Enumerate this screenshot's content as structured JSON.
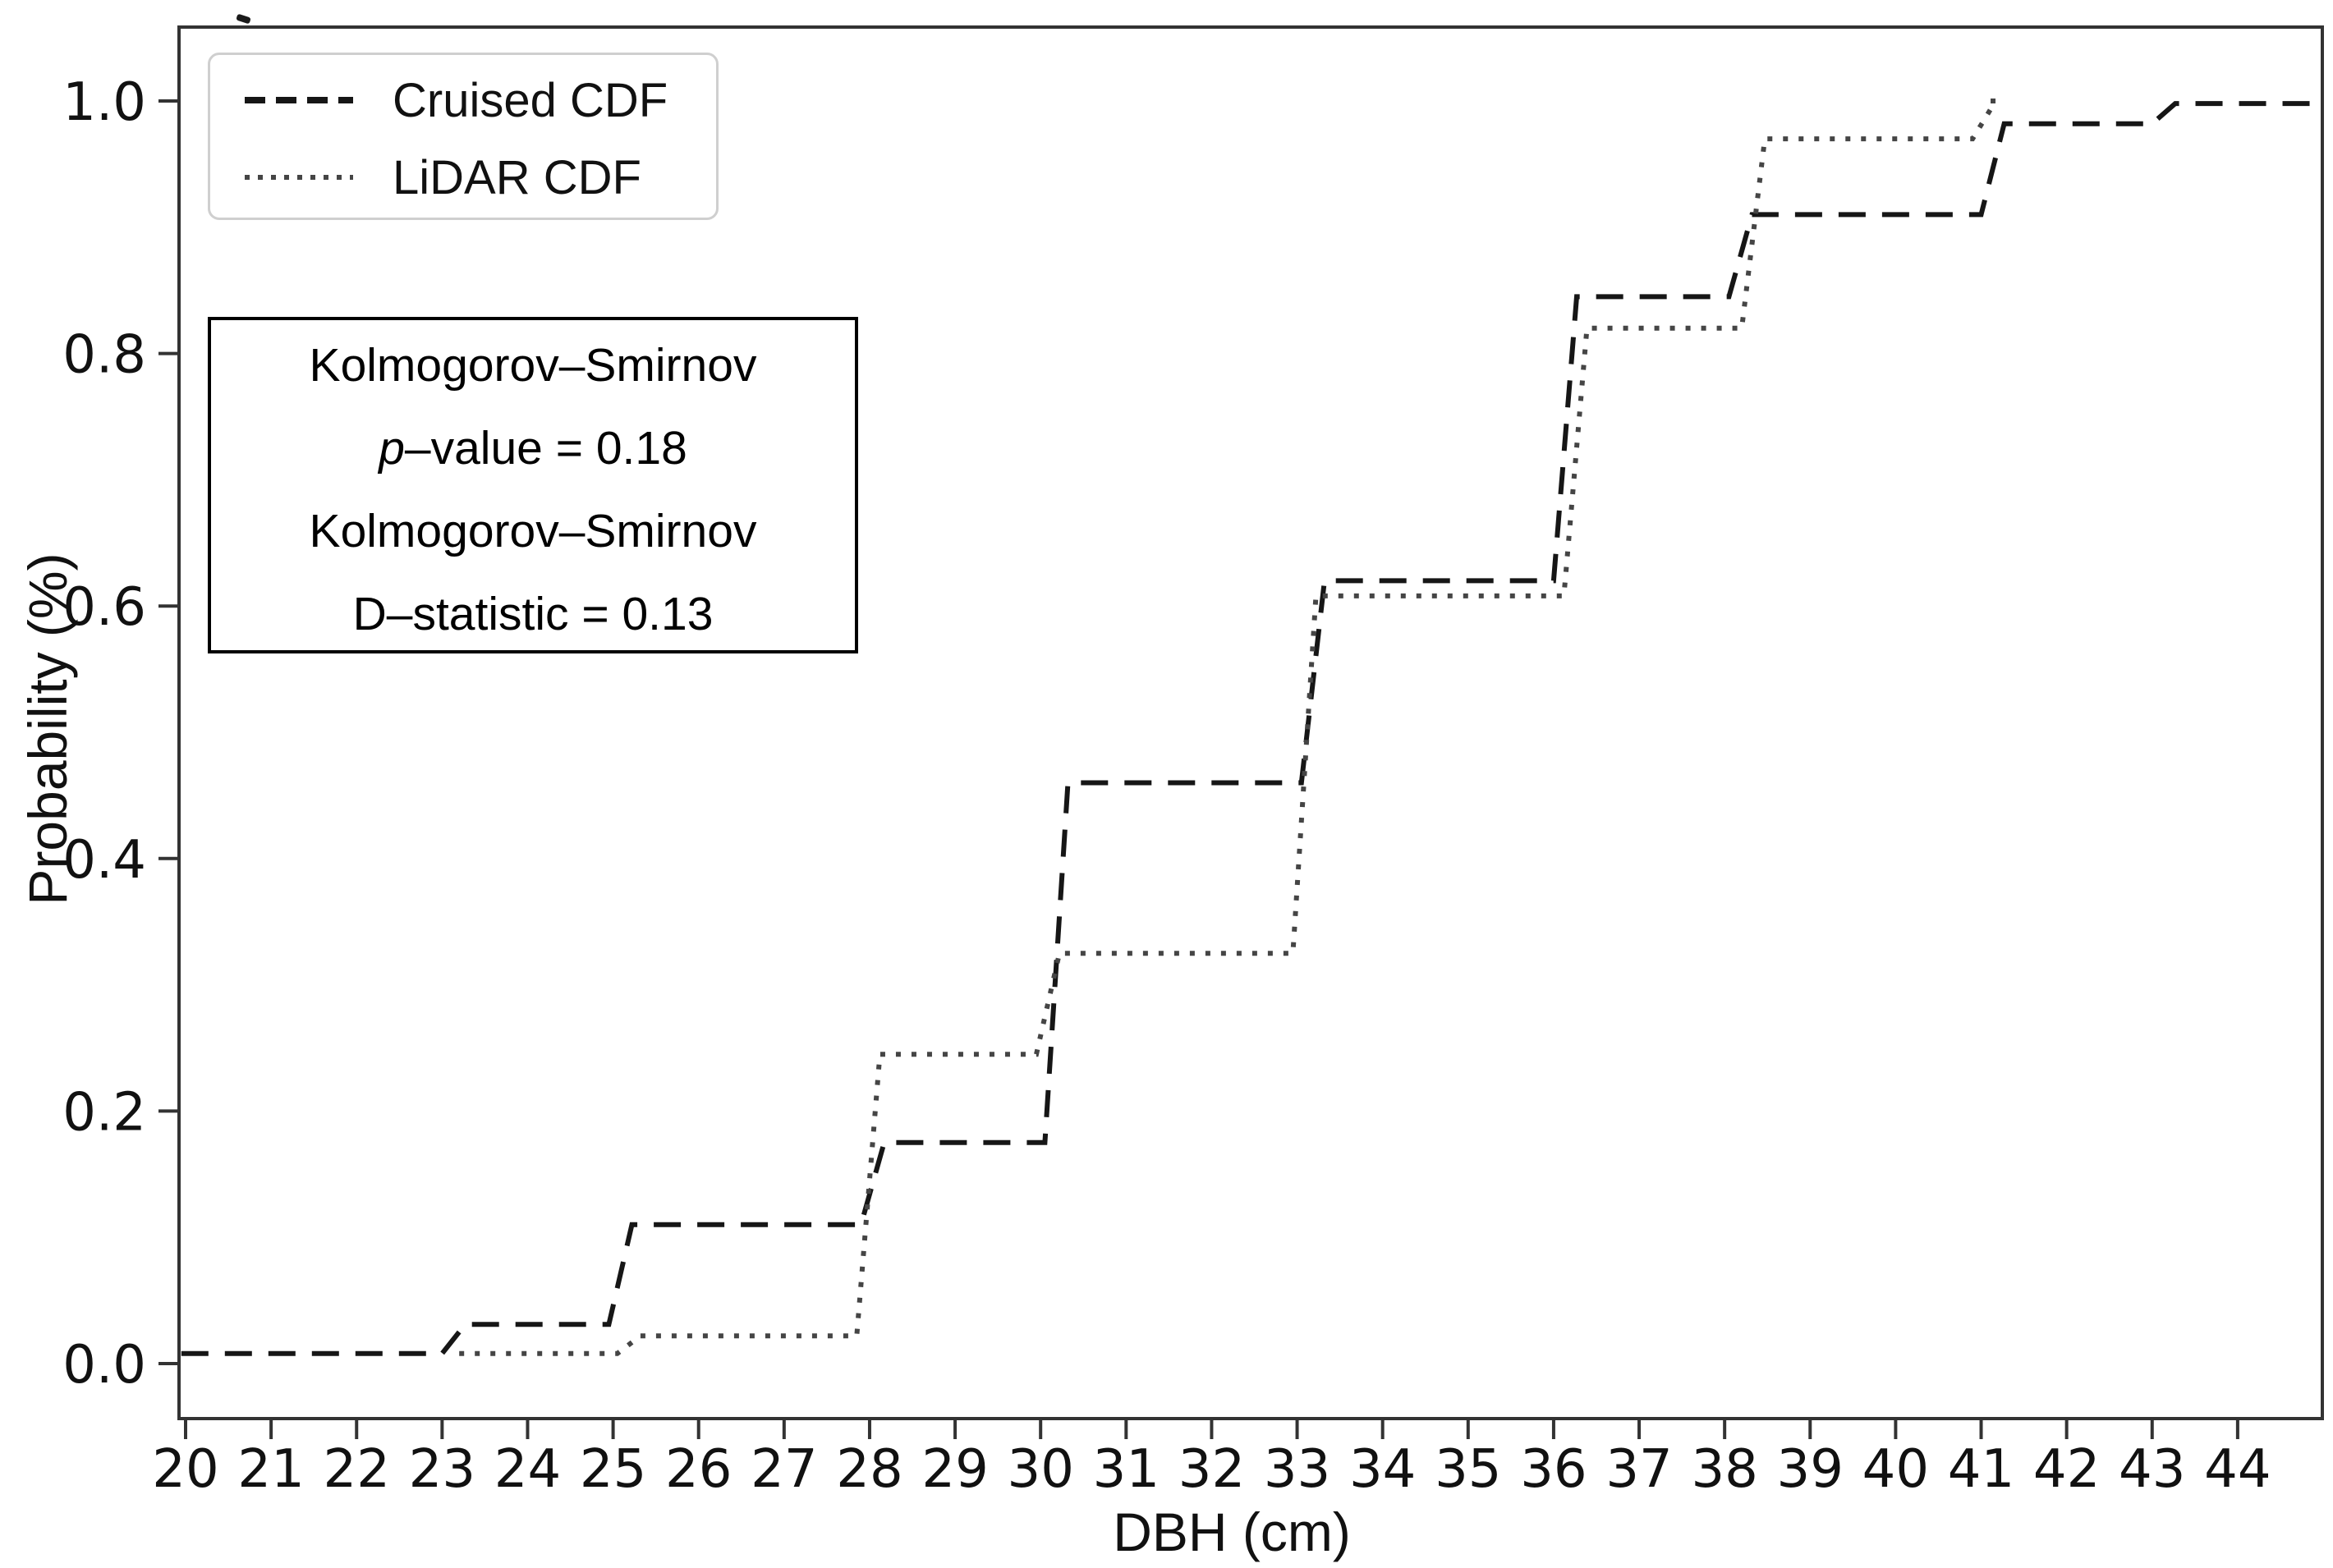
{
  "axes": {
    "x_title": "DBH (cm)",
    "y_title": "Probability (%)"
  },
  "legend": {
    "items": [
      {
        "label": "Cruised CDF",
        "style": "dashed",
        "color": "#161616"
      },
      {
        "label": "LiDAR CDF",
        "style": "dotted",
        "color": "#454545"
      }
    ]
  },
  "annotation": {
    "line1": "Kolmogorov–Smirnov",
    "line2_italic": "p",
    "line2_rest": "–value = 0.18",
    "line3": "Kolmogorov–Smirnov",
    "line4": "D–statistic = 0.13"
  },
  "chart_data": {
    "type": "line",
    "subtype": "step-cdf",
    "title": "",
    "xlabel": "DBH (cm)",
    "ylabel": "Probability (%)",
    "xlim": [
      20,
      45
    ],
    "ylim": [
      -0.04,
      1.06
    ],
    "grid": false,
    "legend_position": "upper left",
    "x_ticks": [
      20,
      21,
      22,
      23,
      24,
      25,
      26,
      27,
      28,
      29,
      30,
      31,
      32,
      33,
      34,
      35,
      36,
      37,
      38,
      39,
      40,
      41,
      42,
      43,
      44
    ],
    "y_ticks": [
      {
        "value": 0.0,
        "label": "0.0"
      },
      {
        "value": 0.2,
        "label": "0.2"
      },
      {
        "value": 0.4,
        "label": "0.4"
      },
      {
        "value": 0.6,
        "label": "0.6"
      },
      {
        "value": 0.8,
        "label": "0.8"
      },
      {
        "value": 1.0,
        "label": "1.0"
      }
    ],
    "series": [
      {
        "name": "Cruised CDF",
        "linestyle": "dashed",
        "color": "#161616",
        "steps": [
          [
            19.95,
            0.008
          ],
          [
            23.0,
            0.031
          ],
          [
            24.95,
            0.11
          ],
          [
            27.9,
            0.175
          ],
          [
            30.05,
            0.46
          ],
          [
            33.05,
            0.62
          ],
          [
            36.0,
            0.845
          ],
          [
            38.05,
            0.91
          ],
          [
            41.0,
            0.982
          ],
          [
            43.0,
            0.998
          ]
        ],
        "end_x": 45.0
      },
      {
        "name": "LiDAR CDF",
        "linestyle": "dotted",
        "color": "#454545",
        "steps": [
          [
            23.2,
            0.008
          ],
          [
            25.05,
            0.022
          ],
          [
            27.85,
            0.245
          ],
          [
            29.95,
            0.325
          ],
          [
            32.95,
            0.608
          ],
          [
            36.12,
            0.82
          ],
          [
            38.2,
            0.97
          ],
          [
            40.9,
            1.0
          ]
        ],
        "end_x": 41.1
      }
    ],
    "ks_test": {
      "p_value": 0.18,
      "d_statistic": 0.13
    }
  }
}
